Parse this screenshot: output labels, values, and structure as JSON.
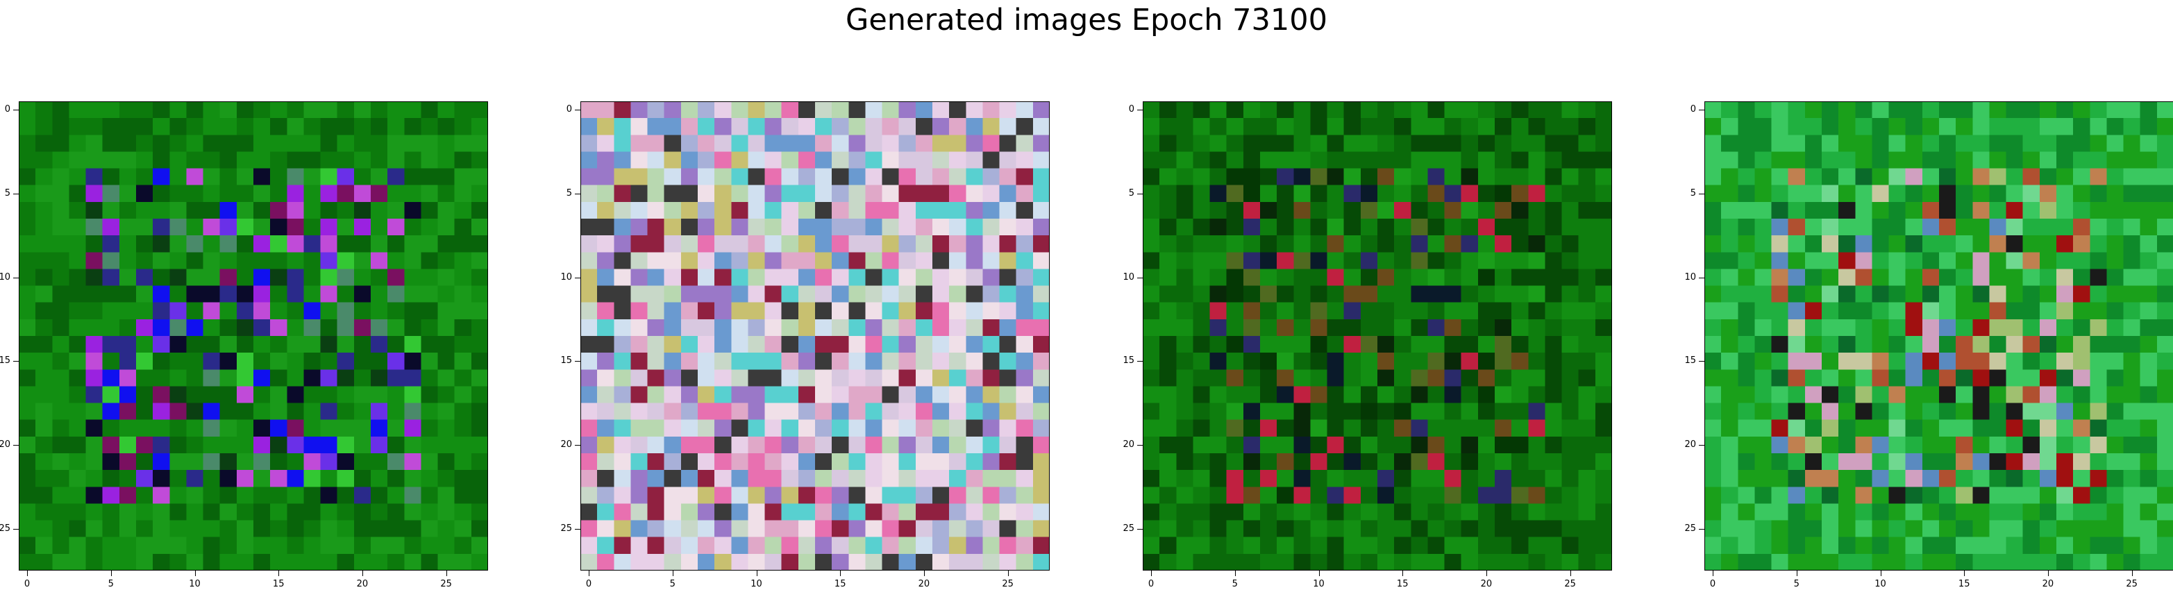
{
  "figure": {
    "suptitle": "Generated images Epoch 73100"
  },
  "chart_data": [
    {
      "type": "heatmap",
      "panel": 1,
      "grid_size": [
        28,
        28
      ],
      "xticks": [
        0,
        5,
        10,
        15,
        20,
        25
      ],
      "yticks": [
        0,
        5,
        10,
        15,
        20,
        25
      ],
      "xlim": [
        -0.5,
        27.5
      ],
      "ylim": [
        27.5,
        -0.5
      ],
      "palette": [
        "#0c7a0c",
        "#128f12",
        "#08640a",
        "#1a9a1a",
        "#0a3f12",
        "#2a2a8a",
        "#1010f0",
        "#6a30e8",
        "#9a22e0",
        "#c04bd8",
        "#7a1060",
        "#0a0a2a",
        "#33c833",
        "#4a8a6a"
      ],
      "pattern": "green border with blue-violet noisy interior"
    },
    {
      "type": "heatmap",
      "panel": 2,
      "grid_size": [
        28,
        28
      ],
      "xticks": [
        0,
        5,
        10,
        15,
        20,
        25
      ],
      "yticks": [
        0,
        5,
        10,
        15,
        20,
        25
      ],
      "xlim": [
        -0.5,
        27.5
      ],
      "ylim": [
        27.5,
        -0.5
      ],
      "palette": [
        "#d8c8e0",
        "#c8d8c8",
        "#e8d0e8",
        "#a8b0d8",
        "#d0e0f0",
        "#e0a8c8",
        "#b8d8b0",
        "#f0e0e8",
        "#9a78c8",
        "#c8c070",
        "#6a9ad0",
        "#e870b0",
        "#58d0d0",
        "#902040",
        "#3a3a3a"
      ],
      "pattern": "pastel noise"
    },
    {
      "type": "heatmap",
      "panel": 3,
      "grid_size": [
        28,
        28
      ],
      "xticks": [
        0,
        5,
        10,
        15,
        20,
        25
      ],
      "yticks": [
        0,
        5,
        10,
        15,
        20,
        25
      ],
      "xlim": [
        -0.5,
        27.5
      ],
      "ylim": [
        27.5,
        -0.5
      ],
      "palette": [
        "#0a6a0a",
        "#0e7e0e",
        "#064a06",
        "#138f13",
        "#043804",
        "#1a9e1a",
        "#082808",
        "#506a20",
        "#0a1a2a",
        "#c02040",
        "#6a4a1a",
        "#2a2a6a"
      ],
      "pattern": "dark green with sparse dark/red specks in middle"
    },
    {
      "type": "heatmap",
      "panel": 4,
      "grid_size": [
        28,
        28
      ],
      "xticks": [
        0,
        5,
        10,
        15,
        20,
        25
      ],
      "yticks": [
        0,
        5,
        10,
        15,
        20,
        25
      ],
      "xlim": [
        -0.5,
        27.5
      ],
      "ylim": [
        27.5,
        -0.5
      ],
      "palette": [
        "#1aa01a",
        "#0e8a2a",
        "#3ac860",
        "#20b040",
        "#70d890",
        "#0a6a2a",
        "#c08050",
        "#b05030",
        "#c8c8a0",
        "#d0a0c0",
        "#a01010",
        "#5a8ac0",
        "#1a1a1a",
        "#a0c070"
      ],
      "pattern": "green border with warm mottled interior"
    }
  ]
}
